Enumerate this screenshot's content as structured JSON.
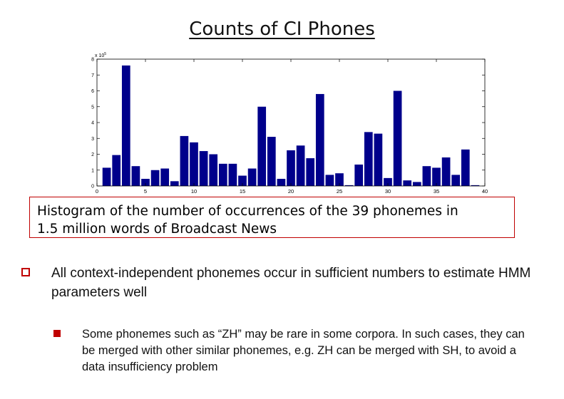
{
  "slide": {
    "title": "Counts of CI Phones",
    "caption_line1": "Histogram of the number of occurrences of the 39 phonemes in",
    "caption_line2": "1.5 million words of Broadcast News",
    "bullet1": "All context-independent phonemes occur in sufficient numbers to estimate HMM parameters well",
    "bullet2": "Some phonemes such as “ZH” may be rare in some corpora. In such cases, they can be merged with other similar phonemes, e.g. ZH can be merged with SH, to avoid a data insufficiency problem"
  },
  "colors": {
    "bar": "#00008b",
    "accent": "#c00000"
  },
  "chart_data": {
    "type": "bar",
    "title": "",
    "xlabel": "",
    "ylabel": "",
    "y_multiplier_label": "x 10^5",
    "x": [
      1,
      2,
      3,
      4,
      5,
      6,
      7,
      8,
      9,
      10,
      11,
      12,
      13,
      14,
      15,
      16,
      17,
      18,
      19,
      20,
      21,
      22,
      23,
      24,
      25,
      26,
      27,
      28,
      29,
      30,
      31,
      32,
      33,
      34,
      35,
      36,
      37,
      38,
      39
    ],
    "values": [
      1.15,
      1.95,
      7.6,
      1.25,
      0.45,
      1.0,
      1.1,
      0.3,
      3.15,
      2.75,
      2.2,
      2.0,
      1.4,
      1.4,
      0.65,
      1.1,
      5.0,
      3.1,
      0.45,
      2.25,
      2.55,
      1.75,
      5.8,
      0.7,
      0.8,
      0.05,
      1.35,
      3.4,
      3.3,
      0.5,
      6.0,
      0.35,
      0.25,
      1.25,
      1.15,
      1.8,
      0.7,
      2.3,
      0.05
    ],
    "xlim": [
      0,
      40
    ],
    "ylim": [
      0,
      8
    ],
    "xticks": [
      0,
      5,
      10,
      15,
      20,
      25,
      30,
      35,
      40
    ],
    "yticks": [
      0,
      1,
      2,
      3,
      4,
      5,
      6,
      7,
      8
    ],
    "grid": false
  }
}
